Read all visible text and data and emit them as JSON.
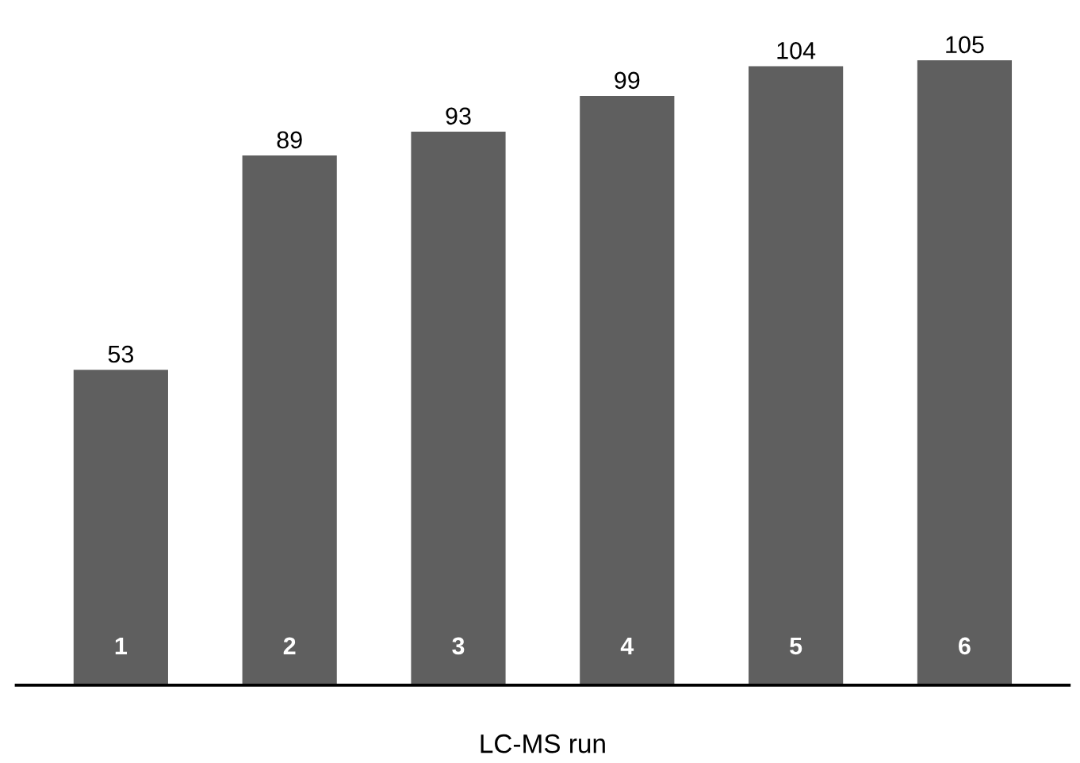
{
  "chart_data": {
    "type": "bar",
    "xlabel": "LC-MS run",
    "categories": [
      "1",
      "2",
      "3",
      "4",
      "5",
      "6"
    ],
    "values": [
      53,
      89,
      93,
      99,
      104,
      105
    ],
    "color": "#5f5f5f",
    "data_labels": true,
    "grid": false,
    "legend": false
  }
}
